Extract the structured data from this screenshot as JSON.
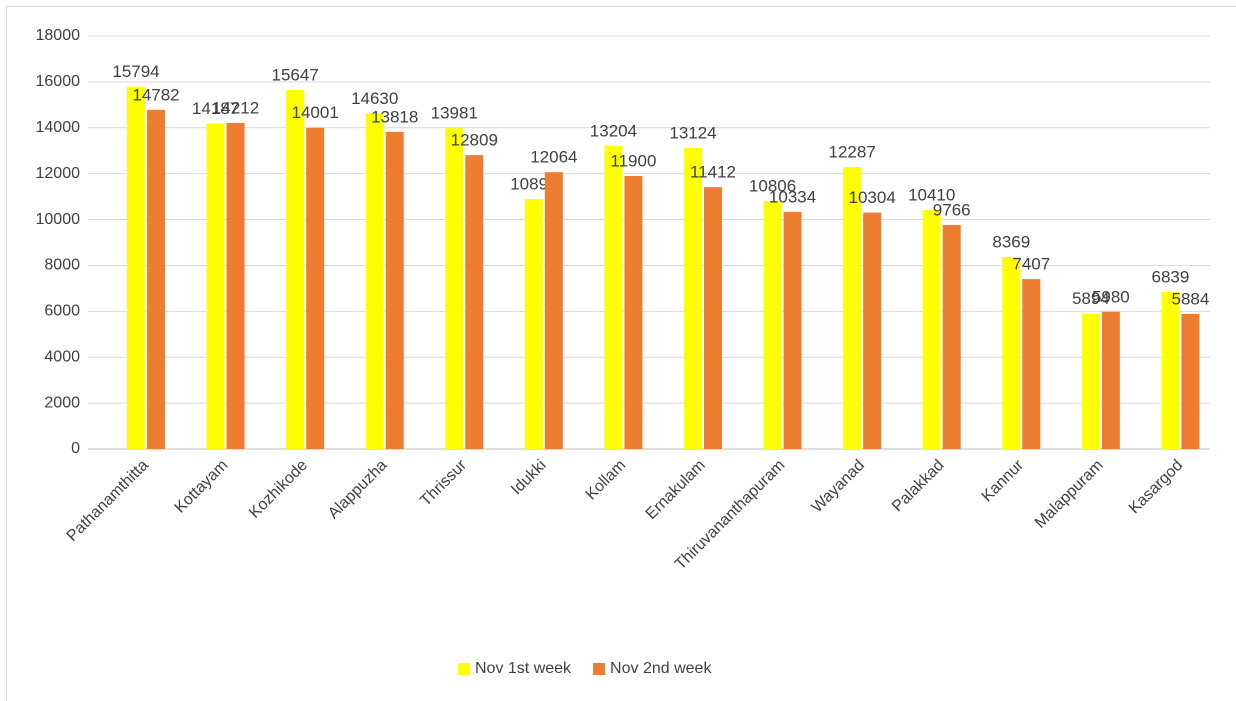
{
  "chart_data": {
    "type": "bar",
    "categories": [
      "Pathanamthitta",
      "Kottayam",
      "Kozhikode",
      "Alappuzha",
      "Thrissur",
      "Idukki",
      "Kollam",
      "Ernakulam",
      "Thiruvananthapuram",
      "Wayanad",
      "Palakkad",
      "Kannur",
      "Malappuram",
      "Kasargod"
    ],
    "series": [
      {
        "name": "Nov 1st week",
        "color": "#ffff00",
        "values": [
          15794,
          14187,
          15647,
          14630,
          13981,
          10895,
          13204,
          13124,
          10806,
          12287,
          10410,
          8369,
          5894,
          6839
        ]
      },
      {
        "name": "Nov 2nd week",
        "color": "#ed7d31",
        "values": [
          14782,
          14212,
          14001,
          13818,
          12809,
          12064,
          11900,
          11412,
          10334,
          10304,
          9766,
          7407,
          5980,
          5884
        ]
      }
    ],
    "ylim": [
      0,
      18000
    ],
    "yticks": [
      0,
      2000,
      4000,
      6000,
      8000,
      10000,
      12000,
      14000,
      16000,
      18000
    ],
    "grid": true,
    "legend": "bottom"
  }
}
